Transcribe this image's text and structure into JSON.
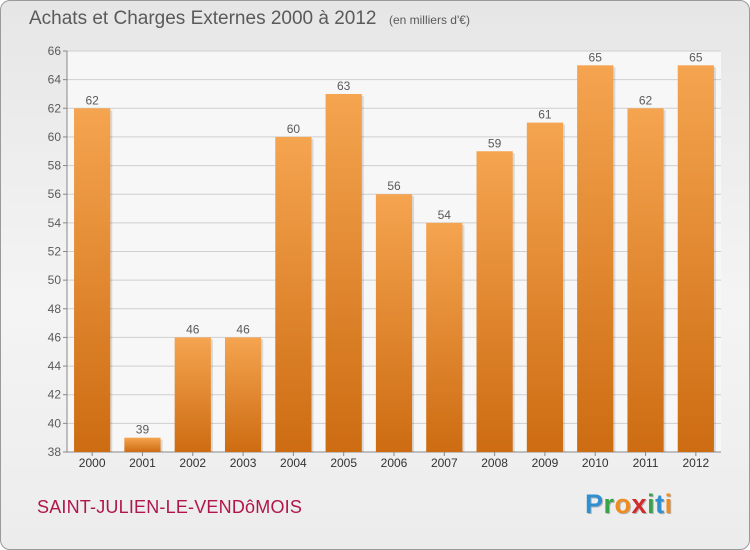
{
  "colors": {
    "bar_top": "#f5a450",
    "bar_bottom": "#cd6c12",
    "grid": "#cfcfcf",
    "text": "#5a5a5a",
    "commune": "#b0164c"
  },
  "footer": {
    "commune": "SAINT-JULIEN-LE-VENDôMOIS",
    "brand_letters": [
      {
        "ch": "P",
        "color": "#2f8fd1"
      },
      {
        "ch": "r",
        "color": "#3aa34a"
      },
      {
        "ch": "o",
        "color": "#f08c1e"
      },
      {
        "ch": "x",
        "color": "#d22b2b"
      },
      {
        "ch": "i",
        "color": "#3aa34a"
      },
      {
        "ch": "t",
        "color": "#2f8fd1"
      },
      {
        "ch": "i",
        "color": "#f08c1e"
      }
    ]
  },
  "chart_data": {
    "type": "bar",
    "title": "Achats et Charges Externes 2000 à 2012",
    "unit_label": "(en milliers d'€)",
    "categories": [
      "2000",
      "2001",
      "2002",
      "2003",
      "2004",
      "2005",
      "2006",
      "2007",
      "2008",
      "2009",
      "2010",
      "2011",
      "2012"
    ],
    "values": [
      62,
      39,
      46,
      46,
      60,
      63,
      56,
      54,
      59,
      61,
      65,
      62,
      65
    ],
    "value_labels": [
      "62",
      "39",
      "46",
      "46",
      "60",
      "63",
      "56",
      "54",
      "59",
      "61",
      "65",
      "62",
      "65"
    ],
    "ylim": [
      38,
      66
    ],
    "yticks": [
      38,
      40,
      42,
      44,
      46,
      48,
      50,
      52,
      54,
      56,
      58,
      60,
      62,
      64,
      66
    ],
    "grid": true,
    "legend": "none"
  }
}
